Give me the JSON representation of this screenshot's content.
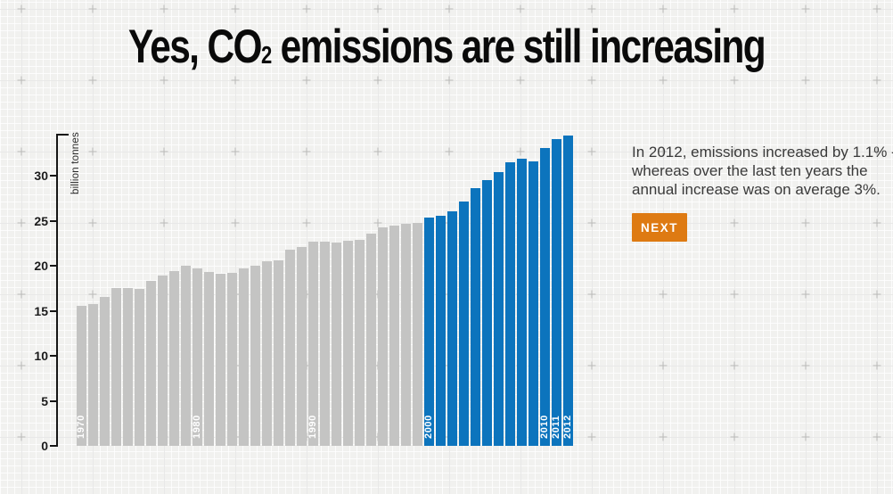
{
  "title": {
    "prefix": "Yes, CO",
    "subscript": "2",
    "suffix": " emissions are still increasing"
  },
  "annotation": {
    "lines": [
      "In 2012, emissions increased by 1.1% -",
      "whereas over the last ten years the",
      "annual increase was on average 3%."
    ],
    "full_text": "In 2012, emissions increased by 1.1% - whereas over the last ten years the annual increase was on average 3%.",
    "next_button_label": "NEXT"
  },
  "colors": {
    "accent_orange": "#de7a12",
    "bar_gray": "#c4c4c3",
    "bar_blue": "#0c74bd",
    "background": "#f1f1ef",
    "title_text": "#0a0a0a",
    "body_text": "#3a3a3a",
    "axis": "#161616",
    "bar_label": "#ffffff"
  },
  "chart_data": {
    "type": "bar",
    "ylabel": "billion tonnes",
    "unit": "billion tonnes CO2",
    "years": [
      1970,
      1971,
      1972,
      1973,
      1974,
      1975,
      1976,
      1977,
      1978,
      1979,
      1980,
      1981,
      1982,
      1983,
      1984,
      1985,
      1986,
      1987,
      1988,
      1989,
      1990,
      1991,
      1992,
      1993,
      1994,
      1995,
      1996,
      1997,
      1998,
      1999,
      2000,
      2001,
      2002,
      2003,
      2004,
      2005,
      2006,
      2007,
      2008,
      2009,
      2010,
      2011,
      2012
    ],
    "values": [
      15.6,
      15.8,
      16.6,
      17.5,
      17.5,
      17.4,
      18.3,
      18.9,
      19.4,
      20.0,
      19.7,
      19.3,
      19.1,
      19.2,
      19.7,
      20.0,
      20.5,
      20.6,
      21.8,
      22.1,
      22.7,
      22.7,
      22.6,
      22.8,
      22.9,
      23.6,
      24.3,
      24.5,
      24.7,
      24.8,
      25.4,
      25.6,
      26.1,
      27.2,
      28.6,
      29.5,
      30.4,
      31.5,
      31.9,
      31.6,
      33.1,
      34.1,
      34.5
    ],
    "highlight_from_year": 2000,
    "color_past": "#c4c4c3",
    "color_recent": "#0c74bd",
    "labeled_years": [
      1970,
      1980,
      1990,
      2000,
      2010,
      2011,
      2012
    ],
    "yticks": [
      0,
      5,
      10,
      15,
      20,
      25,
      30
    ],
    "ylim": [
      0,
      34.7
    ],
    "grid": "off",
    "legend": "none"
  }
}
